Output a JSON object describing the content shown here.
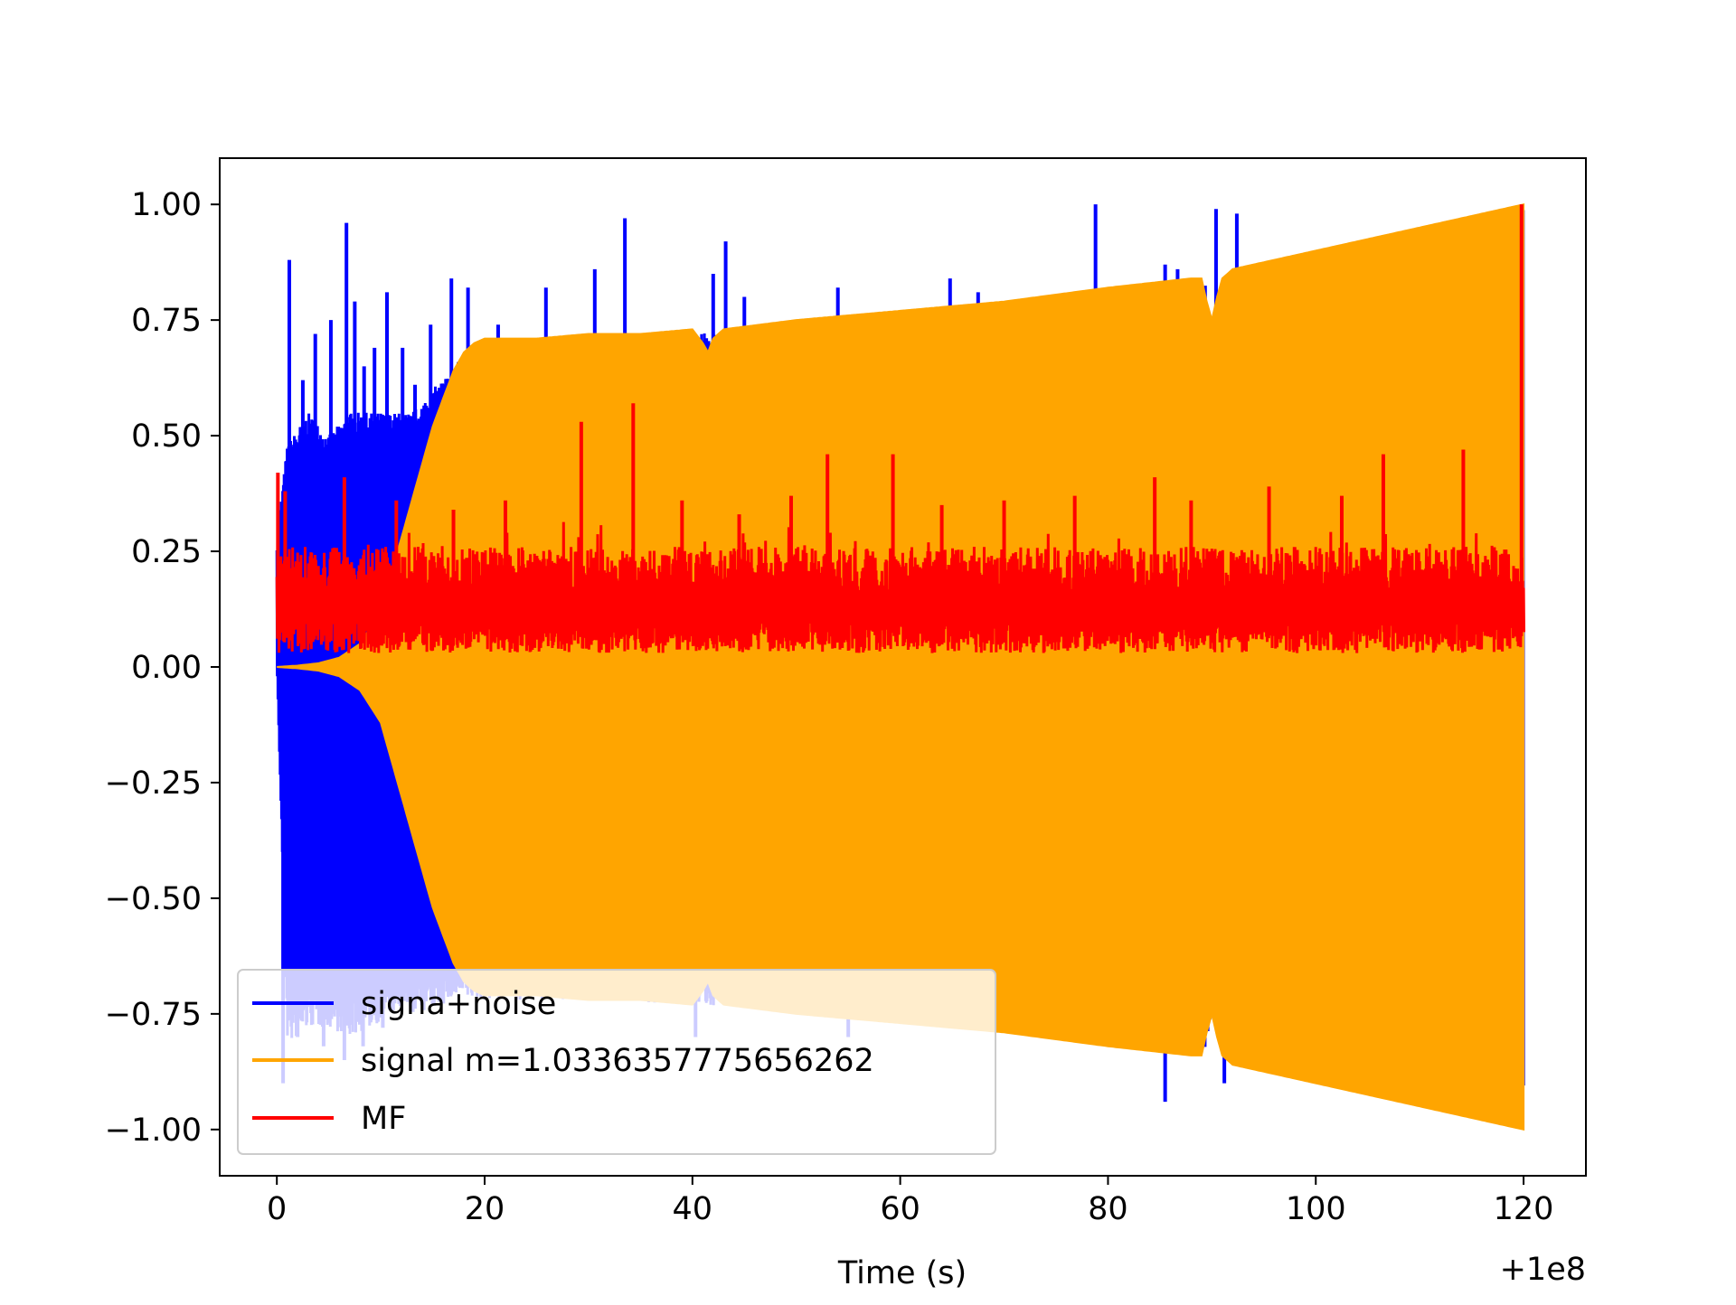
{
  "chart_data": {
    "type": "line",
    "title": "",
    "xlabel": "Time (s)",
    "ylabel": "",
    "x_offset_label": "+1e8",
    "xlim": [
      -5.5,
      126
    ],
    "ylim": [
      -1.1,
      1.1
    ],
    "x_ticks": [
      0,
      20,
      40,
      60,
      80,
      100,
      120
    ],
    "x_tick_labels": [
      "0",
      "20",
      "40",
      "60",
      "80",
      "100",
      "120"
    ],
    "y_ticks": [
      1.0,
      0.75,
      0.5,
      0.25,
      0.0,
      -0.25,
      -0.5,
      -0.75,
      -1.0
    ],
    "y_tick_labels": [
      "1.00",
      "0.75",
      "0.50",
      "0.25",
      "0.00",
      "−0.25",
      "−0.50",
      "−0.75",
      "−1.00"
    ],
    "grid": false,
    "legend_position": "lower-left",
    "series": [
      {
        "name": "signa+noise",
        "color": "#0000ff",
        "envelope": {
          "t": [
            0,
            1,
            3,
            5,
            7,
            9,
            11,
            13,
            15,
            17,
            18,
            20,
            30,
            40,
            50,
            60,
            70,
            80,
            89,
            89.5,
            90,
            91,
            92,
            100,
            110,
            120
          ],
          "upper": [
            0.28,
            0.48,
            0.55,
            0.5,
            0.55,
            0.55,
            0.55,
            0.55,
            0.6,
            0.65,
            0.68,
            0.7,
            0.71,
            0.72,
            0.74,
            0.76,
            0.79,
            0.82,
            0.84,
            0.82,
            0.75,
            0.8,
            0.86,
            0.9,
            0.95,
            1.0
          ],
          "lower": [
            -0.02,
            -0.82,
            -0.78,
            -0.78,
            -0.8,
            -0.78,
            -0.75,
            -0.75,
            -0.74,
            -0.72,
            -0.72,
            -0.72,
            -0.72,
            -0.73,
            -0.74,
            -0.76,
            -0.79,
            -0.82,
            -0.84,
            -0.82,
            -0.76,
            -0.8,
            -0.86,
            -0.9,
            -0.95,
            -1.0
          ]
        },
        "spikes": [
          {
            "t": 1.2,
            "v": 0.88
          },
          {
            "t": 2.5,
            "v": 0.62
          },
          {
            "t": 3.7,
            "v": 0.72
          },
          {
            "t": 5.2,
            "v": 0.75
          },
          {
            "t": 6.7,
            "v": 0.96
          },
          {
            "t": 7.5,
            "v": 0.79
          },
          {
            "t": 8.4,
            "v": 0.65
          },
          {
            "t": 9.4,
            "v": 0.69
          },
          {
            "t": 10.6,
            "v": 0.81
          },
          {
            "t": 12.1,
            "v": 0.69
          },
          {
            "t": 13.3,
            "v": 0.61
          },
          {
            "t": 14.8,
            "v": 0.74
          },
          {
            "t": 16.8,
            "v": 0.84
          },
          {
            "t": 18.4,
            "v": 0.82
          },
          {
            "t": 21.3,
            "v": 0.74
          },
          {
            "t": 25.9,
            "v": 0.82
          },
          {
            "t": 30.6,
            "v": 0.86
          },
          {
            "t": 33.5,
            "v": 0.97
          },
          {
            "t": 38.2,
            "v": 0.72
          },
          {
            "t": 42.0,
            "v": 0.85
          },
          {
            "t": 43.2,
            "v": 0.92
          },
          {
            "t": 45.0,
            "v": 0.8
          },
          {
            "t": 54.0,
            "v": 0.82
          },
          {
            "t": 64.8,
            "v": 0.84
          },
          {
            "t": 67.5,
            "v": 0.81
          },
          {
            "t": 78.8,
            "v": 1.0
          },
          {
            "t": 85.5,
            "v": 0.87
          },
          {
            "t": 86.7,
            "v": 0.86
          },
          {
            "t": 90.4,
            "v": 0.99
          },
          {
            "t": 92.4,
            "v": 0.98
          },
          {
            "t": 0.6,
            "v": -0.9
          },
          {
            "t": 2.0,
            "v": -0.8
          },
          {
            "t": 4.5,
            "v": -0.82
          },
          {
            "t": 6.5,
            "v": -0.85
          },
          {
            "t": 8.3,
            "v": -0.82
          },
          {
            "t": 10.2,
            "v": -0.78
          },
          {
            "t": 40.3,
            "v": -0.8
          },
          {
            "t": 55.0,
            "v": -0.8
          },
          {
            "t": 85.5,
            "v": -0.94
          },
          {
            "t": 91.2,
            "v": -0.9
          }
        ]
      },
      {
        "name": "signal m=1.0336357775656262",
        "color": "#ffa500",
        "envelope": {
          "t": [
            0,
            2,
            4,
            6,
            8,
            10,
            11,
            12,
            13,
            14,
            15,
            16,
            17,
            18,
            19,
            20,
            25,
            30,
            35,
            40,
            41,
            41.5,
            42,
            43,
            50,
            60,
            70,
            80,
            88,
            89,
            89.5,
            90,
            90.5,
            91,
            92,
            100,
            110,
            120
          ],
          "upper": [
            0.0,
            0.003,
            0.008,
            0.02,
            0.05,
            0.12,
            0.2,
            0.28,
            0.36,
            0.44,
            0.52,
            0.58,
            0.64,
            0.68,
            0.7,
            0.71,
            0.71,
            0.72,
            0.72,
            0.73,
            0.7,
            0.68,
            0.71,
            0.73,
            0.75,
            0.77,
            0.79,
            0.82,
            0.84,
            0.84,
            0.79,
            0.75,
            0.8,
            0.84,
            0.86,
            0.9,
            0.95,
            1.0
          ],
          "lower": [
            0.0,
            -0.003,
            -0.008,
            -0.02,
            -0.05,
            -0.12,
            -0.2,
            -0.28,
            -0.36,
            -0.44,
            -0.52,
            -0.58,
            -0.64,
            -0.68,
            -0.7,
            -0.71,
            -0.71,
            -0.72,
            -0.72,
            -0.73,
            -0.7,
            -0.68,
            -0.71,
            -0.73,
            -0.75,
            -0.77,
            -0.79,
            -0.82,
            -0.84,
            -0.84,
            -0.79,
            -0.75,
            -0.8,
            -0.84,
            -0.86,
            -0.9,
            -0.95,
            -1.0
          ]
        }
      },
      {
        "name": "MF",
        "color": "#ff0000",
        "band": {
          "low": 0.03,
          "high": 0.26
        },
        "spikes": [
          {
            "t": 0.1,
            "v": 0.42
          },
          {
            "t": 0.8,
            "v": 0.38
          },
          {
            "t": 6.5,
            "v": 0.41
          },
          {
            "t": 11.5,
            "v": 0.36
          },
          {
            "t": 17.0,
            "v": 0.34
          },
          {
            "t": 22.0,
            "v": 0.36
          },
          {
            "t": 29.3,
            "v": 0.53
          },
          {
            "t": 34.3,
            "v": 0.57
          },
          {
            "t": 39.0,
            "v": 0.36
          },
          {
            "t": 44.5,
            "v": 0.33
          },
          {
            "t": 49.5,
            "v": 0.37
          },
          {
            "t": 53.0,
            "v": 0.46
          },
          {
            "t": 59.3,
            "v": 0.46
          },
          {
            "t": 64.0,
            "v": 0.35
          },
          {
            "t": 70.0,
            "v": 0.36
          },
          {
            "t": 76.8,
            "v": 0.37
          },
          {
            "t": 84.5,
            "v": 0.41
          },
          {
            "t": 88.0,
            "v": 0.36
          },
          {
            "t": 95.5,
            "v": 0.39
          },
          {
            "t": 102.5,
            "v": 0.37
          },
          {
            "t": 106.5,
            "v": 0.46
          },
          {
            "t": 114.2,
            "v": 0.47
          },
          {
            "t": 119.8,
            "v": 1.0
          }
        ]
      }
    ]
  }
}
